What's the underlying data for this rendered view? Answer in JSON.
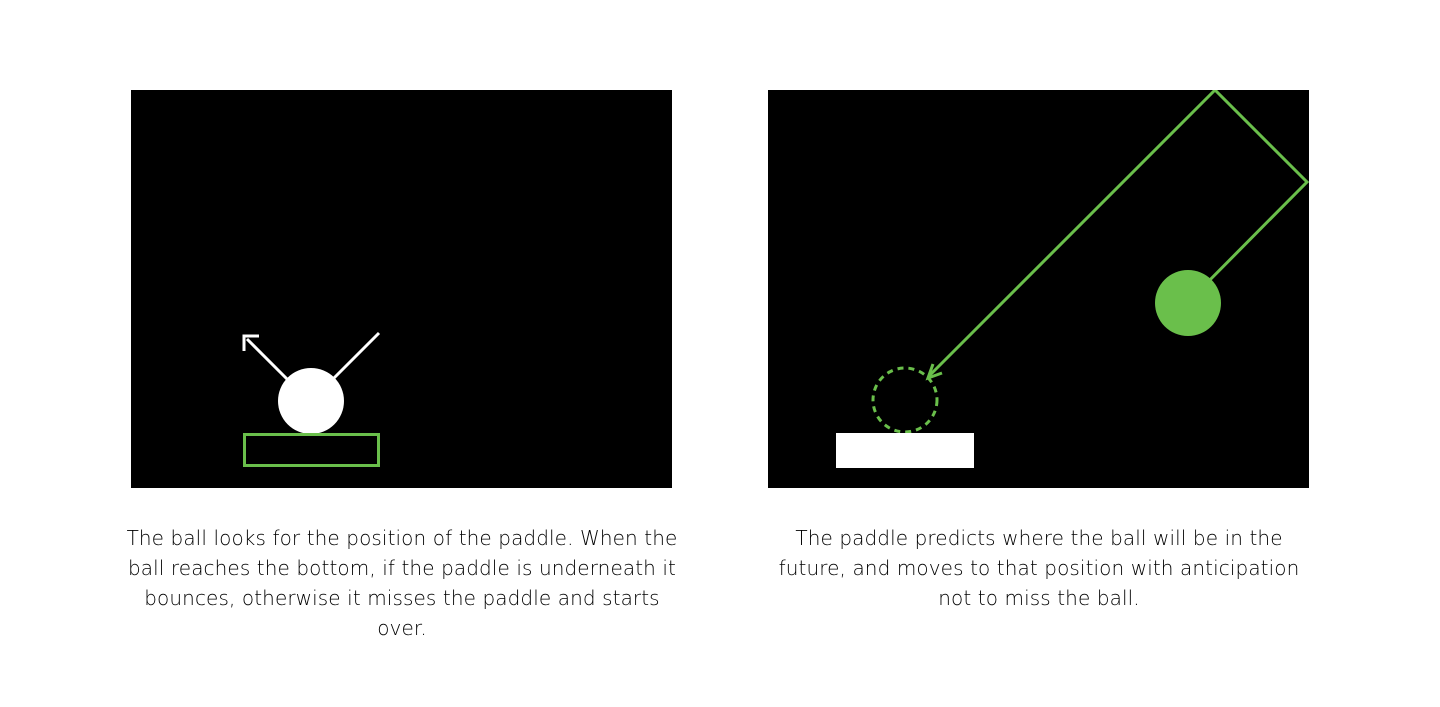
{
  "colors": {
    "background": "#ffffff",
    "panel": "#000000",
    "accent_green": "#6abf4b",
    "white": "#ffffff",
    "text": "#000000"
  },
  "panels": [
    {
      "id": "ball-looks-for-paddle",
      "caption": "The ball looks for the position of the paddle. When the ball reaches the bottom, if the paddle is underneath it bounces, otherwise it misses the paddle and starts over."
    },
    {
      "id": "paddle-predicts-ball",
      "caption": "The paddle predicts where the ball will be in the future, and moves to that position with anticipation not to miss the ball."
    }
  ]
}
